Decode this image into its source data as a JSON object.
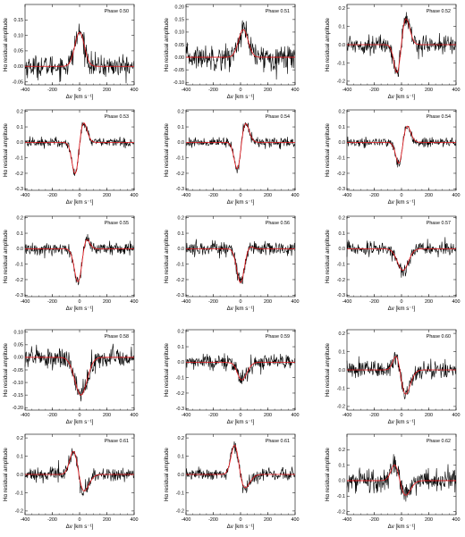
{
  "figure": {
    "title": "",
    "description_panels": 15
  },
  "colors": {
    "observed": "#000000",
    "model": "#e8141a"
  },
  "chart_data": [
    {
      "type": "line",
      "phase_label": "Phase 0.50",
      "xlabel": "Δv [km s⁻¹]",
      "ylabel": "Hα residual amplitude",
      "xlim": [
        -400,
        400
      ],
      "ylim": [
        -0.06,
        0.2
      ],
      "xticks": [
        -400,
        -200,
        0,
        200,
        400
      ],
      "yticks": [
        -0.05,
        0.0,
        0.05,
        0.1,
        0.15
      ],
      "ytick_labels": [
        "-0.05",
        "0.00",
        "0.05",
        "0.10",
        "0.15"
      ],
      "model": {
        "pos_amp": 0.11,
        "pos_center": 0,
        "pos_width": 35,
        "neg_amp": 0,
        "neg_center": 0,
        "neg_width": 30
      },
      "noise": 0.018,
      "series": [
        {
          "values_note": "observed"
        },
        {
          "values_note": "model"
        }
      ]
    },
    {
      "type": "line",
      "phase_label": "Phase 0.51",
      "xlabel": "Δv [km s⁻¹]",
      "ylabel": "Hα residual amplitude",
      "xlim": [
        -400,
        400
      ],
      "ylim": [
        -0.11,
        0.21
      ],
      "xticks": [
        -400,
        -200,
        0,
        200,
        400
      ],
      "yticks": [
        -0.1,
        -0.05,
        0.0,
        0.05,
        0.1,
        0.15,
        0.2
      ],
      "ytick_labels": [
        "-0.10",
        "-0.05",
        "0.00",
        "0.05",
        "0.10",
        "0.15",
        "0.20"
      ],
      "model": {
        "pos_amp": 0.11,
        "pos_center": 20,
        "pos_width": 35,
        "neg_amp": 0,
        "neg_center": 0,
        "neg_width": 30
      },
      "noise": 0.025
    },
    {
      "type": "line",
      "phase_label": "Phase 0.52",
      "xlabel": "Δv [km s⁻¹]",
      "ylabel": "Hα residual amplitude",
      "xlim": [
        -400,
        400
      ],
      "ylim": [
        -0.22,
        0.22
      ],
      "xticks": [
        -400,
        -200,
        0,
        200,
        400
      ],
      "yticks": [
        -0.2,
        -0.1,
        0.0,
        0.1,
        0.2
      ],
      "ytick_labels": [
        "-0.2",
        "-0.1",
        "0.0",
        "0.1",
        "0.2"
      ],
      "model": {
        "pos_amp": 0.15,
        "pos_center": 30,
        "pos_width": 30,
        "neg_amp": 0.17,
        "neg_center": -30,
        "neg_width": 25
      },
      "noise": 0.025
    },
    {
      "type": "line",
      "phase_label": "Phase 0.53",
      "xlabel": "Δv [km s⁻¹]",
      "ylabel": "Hα residual amplitude",
      "xlim": [
        -400,
        400
      ],
      "ylim": [
        -0.31,
        0.21
      ],
      "xticks": [
        -400,
        -200,
        0,
        200,
        400
      ],
      "yticks": [
        -0.3,
        -0.2,
        -0.1,
        0.0,
        0.1,
        0.2
      ],
      "ytick_labels": [
        "-0.3",
        "-0.2",
        "-0.1",
        "0.0",
        "0.1",
        "0.2"
      ],
      "model": {
        "pos_amp": 0.14,
        "pos_center": 25,
        "pos_width": 28,
        "neg_amp": 0.22,
        "neg_center": -30,
        "neg_width": 25
      },
      "noise": 0.016
    },
    {
      "type": "line",
      "phase_label": "Phase 0.54",
      "xlabel": "Δv [km s⁻¹]",
      "ylabel": "Hα residual amplitude",
      "xlim": [
        -400,
        400
      ],
      "ylim": [
        -0.31,
        0.21
      ],
      "xticks": [
        -400,
        -200,
        0,
        200,
        400
      ],
      "yticks": [
        -0.3,
        -0.2,
        -0.1,
        0.0,
        0.1,
        0.2
      ],
      "ytick_labels": [
        "-0.3",
        "-0.2",
        "-0.1",
        "0.0",
        "0.1",
        "0.2"
      ],
      "model": {
        "pos_amp": 0.14,
        "pos_center": 30,
        "pos_width": 30,
        "neg_amp": 0.2,
        "neg_center": -20,
        "neg_width": 25
      },
      "noise": 0.016
    },
    {
      "type": "line",
      "phase_label": "Phase 0.54",
      "xlabel": "Δv [km s⁻¹]",
      "ylabel": "Hα residual amplitude",
      "xlim": [
        -400,
        400
      ],
      "ylim": [
        -0.31,
        0.21
      ],
      "xticks": [
        -400,
        -200,
        0,
        200,
        400
      ],
      "yticks": [
        -0.3,
        -0.2,
        -0.1,
        0.0,
        0.1,
        0.2
      ],
      "ytick_labels": [
        "-0.3",
        "-0.2",
        "-0.1",
        "0.0",
        "0.1",
        "0.2"
      ],
      "model": {
        "pos_amp": 0.12,
        "pos_center": 35,
        "pos_width": 30,
        "neg_amp": 0.16,
        "neg_center": -15,
        "neg_width": 25
      },
      "noise": 0.016
    },
    {
      "type": "line",
      "phase_label": "Phase 0.55",
      "xlabel": "Δv [km s⁻¹]",
      "ylabel": "Hα residual amplitude",
      "xlim": [
        -400,
        400
      ],
      "ylim": [
        -0.31,
        0.21
      ],
      "xticks": [
        -400,
        -200,
        0,
        200,
        400
      ],
      "yticks": [
        -0.3,
        -0.2,
        -0.1,
        0.0,
        0.1,
        0.2
      ],
      "ytick_labels": [
        "-0.3",
        "-0.2",
        "-0.1",
        "0.0",
        "0.1",
        "0.2"
      ],
      "model": {
        "pos_amp": 0.08,
        "pos_center": 45,
        "pos_width": 25,
        "neg_amp": 0.22,
        "neg_center": -10,
        "neg_width": 28
      },
      "noise": 0.022
    },
    {
      "type": "line",
      "phase_label": "Phase 0.56",
      "xlabel": "Δv [km s⁻¹]",
      "ylabel": "Hα residual amplitude",
      "xlim": [
        -400,
        400
      ],
      "ylim": [
        -0.31,
        0.21
      ],
      "xticks": [
        -400,
        -200,
        0,
        200,
        400
      ],
      "yticks": [
        -0.3,
        -0.2,
        -0.1,
        0.0,
        0.1,
        0.2
      ],
      "ytick_labels": [
        "-0.3",
        "-0.2",
        "-0.1",
        "0.0",
        "0.1",
        "0.2"
      ],
      "model": {
        "pos_amp": 0.02,
        "pos_center": 60,
        "pos_width": 25,
        "neg_amp": 0.22,
        "neg_center": 0,
        "neg_width": 28
      },
      "noise": 0.025
    },
    {
      "type": "line",
      "phase_label": "Phase 0.57",
      "xlabel": "Δv [km s⁻¹]",
      "ylabel": "Hα residual amplitude",
      "xlim": [
        -400,
        400
      ],
      "ylim": [
        -0.31,
        0.21
      ],
      "xticks": [
        -400,
        -200,
        0,
        200,
        400
      ],
      "yticks": [
        -0.3,
        -0.2,
        -0.1,
        0.0,
        0.1,
        0.2
      ],
      "ytick_labels": [
        "-0.3",
        "-0.2",
        "-0.1",
        "0.0",
        "0.1",
        "0.2"
      ],
      "model": {
        "pos_amp": 0.0,
        "pos_center": 60,
        "pos_width": 25,
        "neg_amp": 0.14,
        "neg_center": 10,
        "neg_width": 40
      },
      "noise": 0.022
    },
    {
      "type": "line",
      "phase_label": "Phase 0.58",
      "xlabel": "Δv [km s⁻¹]",
      "ylabel": "Hα residual amplitude",
      "xlim": [
        -400,
        400
      ],
      "ylim": [
        -0.21,
        0.11
      ],
      "xticks": [
        -400,
        -200,
        0,
        200,
        400
      ],
      "yticks": [
        -0.2,
        -0.15,
        -0.1,
        -0.05,
        0.0,
        0.05,
        0.1
      ],
      "ytick_labels": [
        "-0.20",
        "-0.15",
        "-0.10",
        "-0.05",
        "0.00",
        "0.05",
        "0.10"
      ],
      "model": {
        "pos_amp": 0.0,
        "pos_center": 60,
        "pos_width": 25,
        "neg_amp": 0.15,
        "neg_center": 10,
        "neg_width": 45
      },
      "noise": 0.02
    },
    {
      "type": "line",
      "phase_label": "Phase 0.59",
      "xlabel": "Δv [km s⁻¹]",
      "ylabel": "Hα residual amplitude",
      "xlim": [
        -400,
        400
      ],
      "ylim": [
        -0.31,
        0.21
      ],
      "xticks": [
        -400,
        -200,
        0,
        200,
        400
      ],
      "yticks": [
        -0.3,
        -0.2,
        -0.1,
        0.0,
        0.1,
        0.2
      ],
      "ytick_labels": [
        "-0.3",
        "-0.2",
        "-0.1",
        "0.0",
        "0.1",
        "0.2"
      ],
      "model": {
        "pos_amp": 0.03,
        "pos_center": -40,
        "pos_width": 25,
        "neg_amp": 0.12,
        "neg_center": 5,
        "neg_width": 40
      },
      "noise": 0.025
    },
    {
      "type": "line",
      "phase_label": "Phase 0.60",
      "xlabel": "Δv [km s⁻¹]",
      "ylabel": "Hα residual amplitude",
      "xlim": [
        -400,
        400
      ],
      "ylim": [
        -0.22,
        0.22
      ],
      "xticks": [
        -400,
        -200,
        0,
        200,
        400
      ],
      "yticks": [
        -0.2,
        -0.1,
        0.0,
        0.1,
        0.2
      ],
      "ytick_labels": [
        "-0.2",
        "-0.1",
        "0.0",
        "0.1",
        "0.2"
      ],
      "model": {
        "pos_amp": 0.13,
        "pos_center": -30,
        "pos_width": 28,
        "neg_amp": 0.15,
        "neg_center": 20,
        "neg_width": 40
      },
      "noise": 0.025
    },
    {
      "type": "line",
      "phase_label": "Phase 0.61",
      "xlabel": "Δv [km s⁻¹]",
      "ylabel": "Hα residual amplitude",
      "xlim": [
        -400,
        400
      ],
      "ylim": [
        -0.22,
        0.22
      ],
      "xticks": [
        -400,
        -200,
        0,
        200,
        400
      ],
      "yticks": [
        -0.2,
        -0.1,
        0.0,
        0.1,
        0.2
      ],
      "ytick_labels": [
        "-0.2",
        "-0.1",
        "0.0",
        "0.1",
        "0.2"
      ],
      "model": {
        "pos_amp": 0.15,
        "pos_center": -40,
        "pos_width": 30,
        "neg_amp": 0.1,
        "neg_center": 25,
        "neg_width": 40
      },
      "noise": 0.018
    },
    {
      "type": "line",
      "phase_label": "Phase 0.61",
      "xlabel": "Δv [km s⁻¹]",
      "ylabel": "Hα residual amplitude",
      "xlim": [
        -400,
        400
      ],
      "ylim": [
        -0.22,
        0.22
      ],
      "xticks": [
        -400,
        -200,
        0,
        200,
        400
      ],
      "yticks": [
        -0.2,
        -0.1,
        0.0,
        0.1,
        0.2
      ],
      "ytick_labels": [
        "-0.2",
        "-0.1",
        "0.0",
        "0.1",
        "0.2"
      ],
      "model": {
        "pos_amp": 0.18,
        "pos_center": -40,
        "pos_width": 28,
        "neg_amp": 0.08,
        "neg_center": 25,
        "neg_width": 40
      },
      "noise": 0.018
    },
    {
      "type": "line",
      "phase_label": "Phase 0.62",
      "xlabel": "Δv [km s⁻¹]",
      "ylabel": "Hα residual amplitude",
      "xlim": [
        -400,
        400
      ],
      "ylim": [
        -0.22,
        0.3
      ],
      "xticks": [
        -400,
        -200,
        0,
        200,
        400
      ],
      "yticks": [
        -0.2,
        -0.1,
        0.0,
        0.1,
        0.2
      ],
      "ytick_labels": [
        "-0.2",
        "-0.1",
        "0.0",
        "0.1",
        "0.2"
      ],
      "model": {
        "pos_amp": 0.12,
        "pos_center": -45,
        "pos_width": 30,
        "neg_amp": 0.1,
        "neg_center": 25,
        "neg_width": 40
      },
      "noise": 0.035
    }
  ]
}
